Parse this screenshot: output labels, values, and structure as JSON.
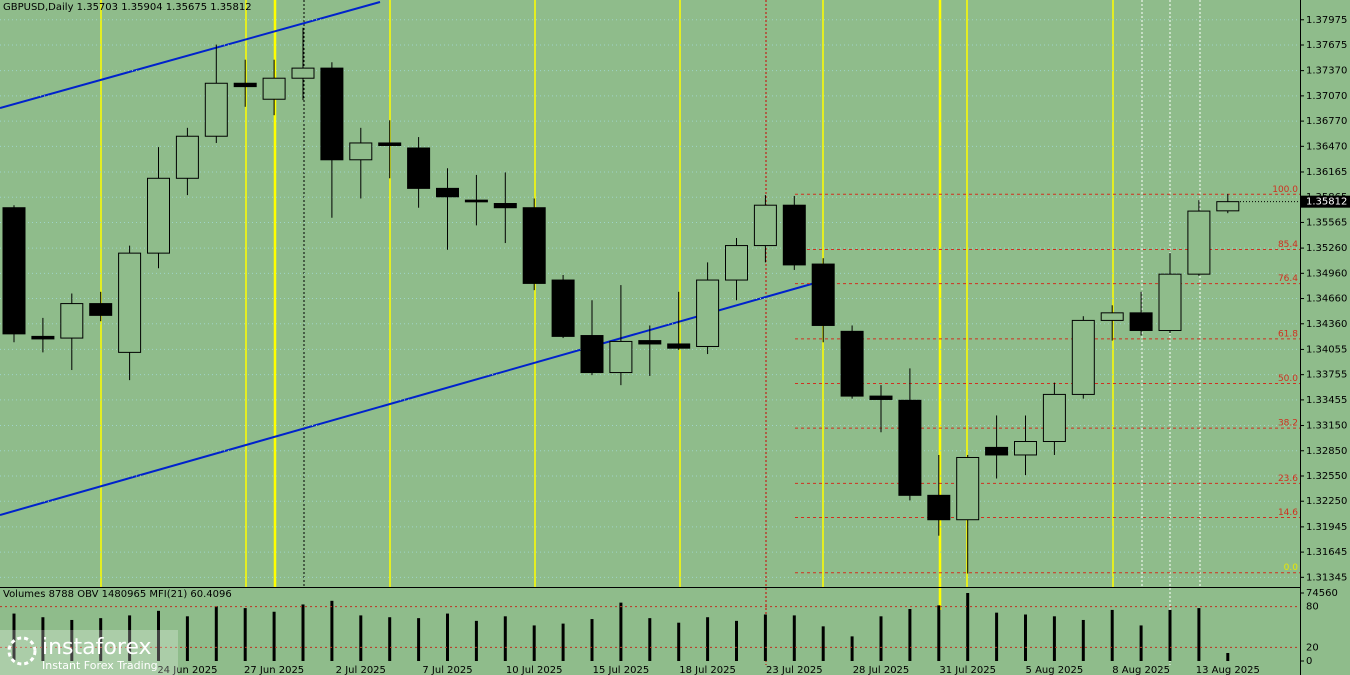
{
  "chart_data": {
    "type": "candlestick",
    "title": "GBPUSD,Daily  1.35703 1.35904 1.35675 1.35812",
    "categories": [
      null,
      null,
      null,
      null,
      null,
      null,
      "24 Jun 2025",
      null,
      null,
      "27 Jun 2025",
      null,
      null,
      "2 Jul 2025",
      null,
      null,
      "7 Jul 2025",
      null,
      null,
      "10 Jul 2025",
      null,
      null,
      "15 Jul 2025",
      null,
      null,
      "18 Jul 2025",
      null,
      null,
      "23 Jul 2025",
      null,
      null,
      "28 Jul 2025",
      null,
      null,
      "31 Jul 2025",
      null,
      null,
      "5 Aug 2025",
      null,
      null,
      "8 Aug 2025",
      null,
      null,
      "13 Aug 2025"
    ],
    "open": [
      1.3574,
      1.3421,
      1.3419,
      1.346,
      1.3402,
      1.352,
      1.3609,
      1.3659,
      1.3722,
      1.3703,
      1.3728,
      1.374,
      1.3631,
      1.3651,
      1.3645,
      1.3597,
      1.3583,
      1.3579,
      1.3574,
      1.3488,
      1.3422,
      1.3378,
      1.3416,
      1.3412,
      1.3409,
      1.3488,
      1.3529,
      1.3577,
      1.3507,
      1.3427,
      1.335,
      1.3345,
      1.3232,
      1.3203,
      1.3289,
      1.328,
      1.3296,
      1.3352,
      1.344,
      1.3449,
      1.3428,
      1.3495,
      1.35703
    ],
    "high": [
      1.3577,
      1.3443,
      1.3472,
      1.3474,
      1.3529,
      1.3646,
      1.3669,
      1.3768,
      1.375,
      1.375,
      1.3788,
      1.3747,
      1.3669,
      1.3678,
      1.3658,
      1.3621,
      1.3613,
      1.3616,
      1.3585,
      1.3494,
      1.3464,
      1.3482,
      1.3434,
      1.3474,
      1.3509,
      1.3538,
      1.3589,
      1.3588,
      1.3514,
      1.3434,
      1.3363,
      1.3383,
      1.328,
      1.328,
      1.3327,
      1.3327,
      1.3366,
      1.3445,
      1.3458,
      1.3474,
      1.352,
      1.3583,
      1.35904
    ],
    "low": [
      1.3414,
      1.3402,
      1.3381,
      1.3439,
      1.3369,
      1.3502,
      1.3589,
      1.3651,
      1.3694,
      1.3684,
      1.3702,
      1.3562,
      1.3585,
      1.3609,
      1.3574,
      1.3524,
      1.3553,
      1.3532,
      1.3476,
      1.3419,
      1.3375,
      1.3363,
      1.3374,
      1.3405,
      1.34,
      1.3464,
      1.3509,
      1.35,
      1.3414,
      1.3347,
      1.3307,
      1.3226,
      1.3184,
      1.3139,
      1.3252,
      1.3256,
      1.328,
      1.3347,
      1.3416,
      1.3422,
      1.3425,
      1.3493,
      1.35675
    ],
    "close": [
      1.3424,
      1.3418,
      1.346,
      1.3446,
      1.352,
      1.3609,
      1.3659,
      1.3722,
      1.3718,
      1.3728,
      1.374,
      1.3631,
      1.3651,
      1.3648,
      1.3597,
      1.3587,
      1.3581,
      1.3574,
      1.3484,
      1.3421,
      1.3378,
      1.3415,
      1.3412,
      1.3407,
      1.3488,
      1.3529,
      1.3577,
      1.3506,
      1.3434,
      1.335,
      1.3346,
      1.3232,
      1.3203,
      1.3277,
      1.328,
      1.3296,
      1.3352,
      1.344,
      1.3449,
      1.3428,
      1.3495,
      1.357,
      1.35812
    ],
    "ylim": [
      1.3123,
      1.3821
    ],
    "yticks": [
      1.37975,
      1.37675,
      {
        "value": 1.3737,
        "label": "1.37370"
      },
      {
        "value": 1.3707,
        "label": "1.37070"
      },
      {
        "value": 1.3677,
        "label": "1.36770"
      },
      {
        "value": 1.3647,
        "label": "1.36470"
      },
      1.36165,
      1.35865,
      1.35565,
      {
        "value": 1.3526,
        "label": "1.35260"
      },
      {
        "value": 1.3496,
        "label": "1.34960"
      },
      {
        "value": 1.3466,
        "label": "1.34660"
      },
      {
        "value": 1.3436,
        "label": "1.34360"
      },
      1.34055,
      1.33755,
      1.33455,
      {
        "value": 1.3315,
        "label": "1.33150"
      },
      {
        "value": 1.3285,
        "label": "1.32850"
      },
      {
        "value": 1.3255,
        "label": "1.32550"
      },
      {
        "value": 1.3225,
        "label": "1.32250"
      },
      1.31945,
      1.31645,
      1.31345
    ],
    "fibonacci": {
      "high": 1.359,
      "low": 1.314,
      "levels": [
        {
          "value": 100,
          "label": "100.0"
        },
        85.4,
        76.4,
        61.8,
        {
          "value": 50,
          "label": "50.0"
        },
        38.2,
        23.6,
        14.6,
        {
          "value": 0,
          "label": "0.0"
        }
      ]
    },
    "volume_panel": {
      "title": "Volumes 8788  OBV 1480965  MFI(21) 60.4096",
      "values": [
        52000,
        48000,
        45000,
        47000,
        50000,
        55000,
        49000,
        60000,
        58000,
        54000,
        62000,
        66000,
        50000,
        48000,
        47000,
        52000,
        44000,
        49000,
        39000,
        41000,
        46000,
        64000,
        47000,
        42000,
        48000,
        44000,
        51000,
        50000,
        38000,
        27000,
        49000,
        57000,
        61000,
        74560,
        53000,
        51000,
        49000,
        45000,
        56000,
        39000,
        56000,
        58000,
        8788
      ],
      "ylim": [
        0,
        74560
      ],
      "yticks": [
        0,
        74560
      ],
      "mfi_ylim": [
        0,
        100
      ],
      "mfi_ticks": [
        20,
        80
      ]
    },
    "watermark": {
      "name": "instaforex",
      "tagline": "Instant Forex Trading"
    }
  }
}
